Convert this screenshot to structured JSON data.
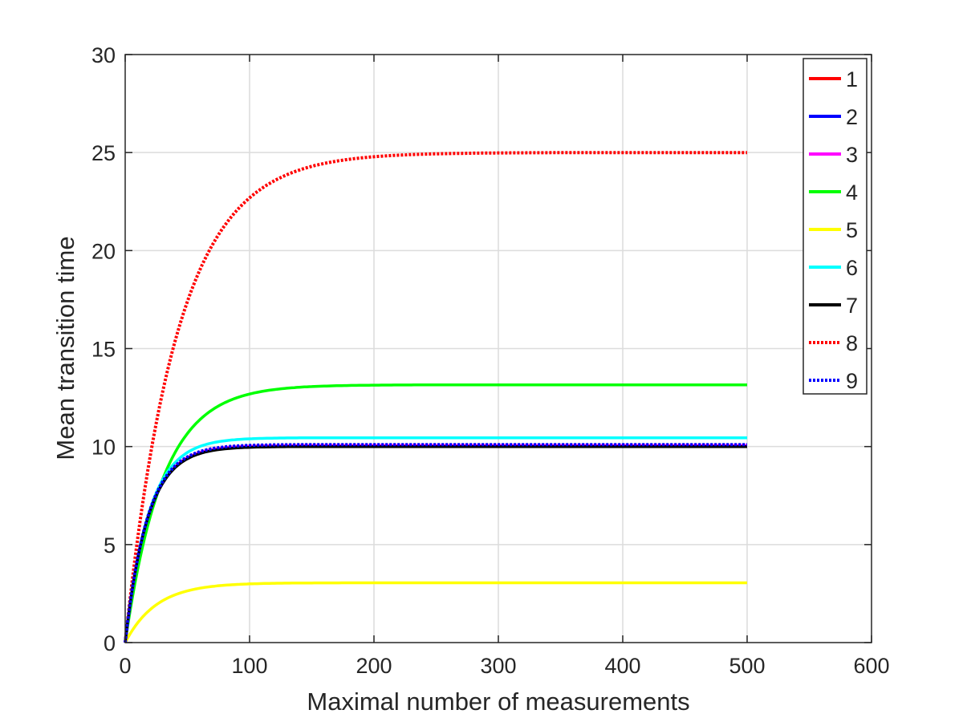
{
  "chart_data": {
    "type": "line",
    "title": "",
    "xlabel": "Maximal number of measurements",
    "ylabel": "Mean transition time",
    "xlim": [
      0,
      600
    ],
    "ylim": [
      0,
      30
    ],
    "xticks": [
      0,
      100,
      200,
      300,
      400,
      500,
      600
    ],
    "yticks": [
      0,
      5,
      10,
      15,
      20,
      25,
      30
    ],
    "grid": true,
    "legend_position": "top-right",
    "x_max": 500,
    "series": [
      {
        "name": "1",
        "color": "#ff0000",
        "style": "solid",
        "plateau": 10.05,
        "tau": 18
      },
      {
        "name": "2",
        "color": "#0000ff",
        "style": "solid",
        "plateau": 10.05,
        "tau": 18
      },
      {
        "name": "3",
        "color": "#ff00ff",
        "style": "solid",
        "plateau": 10.05,
        "tau": 18
      },
      {
        "name": "4",
        "color": "#00ff00",
        "style": "solid",
        "plateau": 13.15,
        "tau": 30
      },
      {
        "name": "5",
        "color": "#ffff00",
        "style": "solid",
        "plateau": 3.05,
        "tau": 25
      },
      {
        "name": "6",
        "color": "#00ffff",
        "style": "solid",
        "plateau": 10.45,
        "tau": 19
      },
      {
        "name": "7",
        "color": "#000000",
        "style": "solid",
        "plateau": 10.0,
        "tau": 18
      },
      {
        "name": "8",
        "color": "#ff0000",
        "style": "dotted",
        "plateau": 25.0,
        "tau": 42
      },
      {
        "name": "9",
        "color": "#0000ff",
        "style": "dotted",
        "plateau": 10.1,
        "tau": 18
      }
    ]
  }
}
